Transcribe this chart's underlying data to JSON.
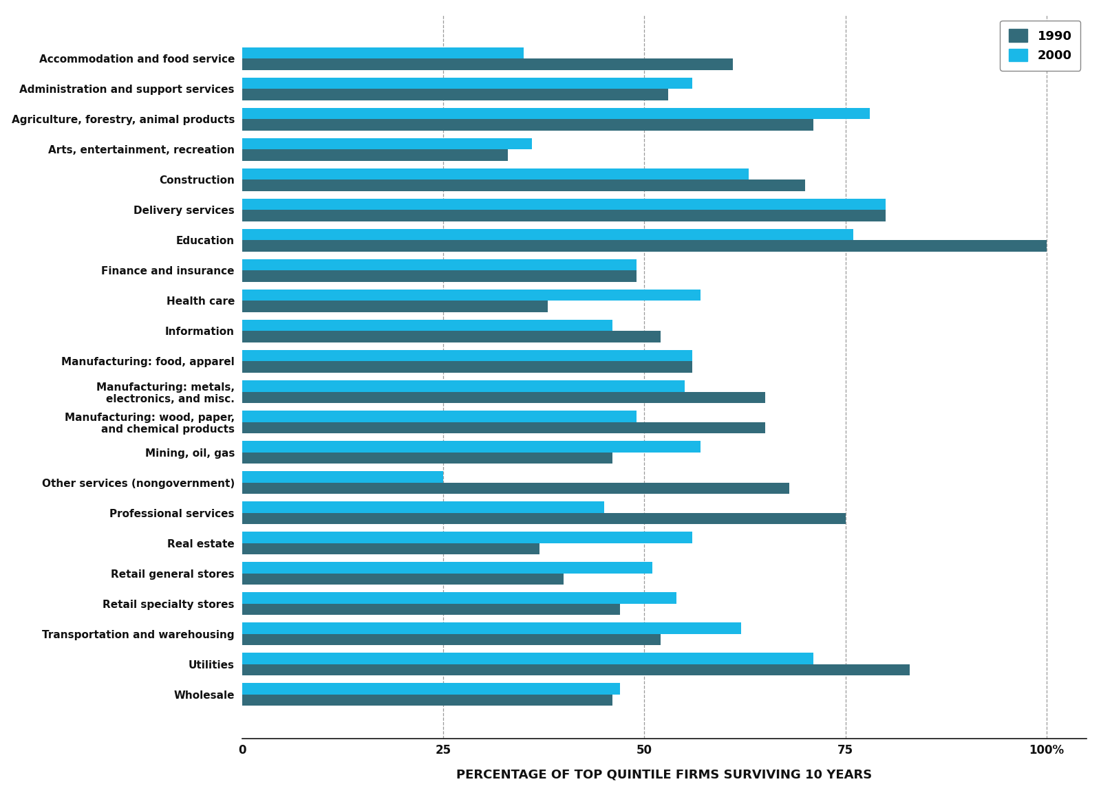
{
  "categories": [
    "Accommodation and food service",
    "Administration and support services",
    "Agriculture, forestry, animal products",
    "Arts, entertainment, recreation",
    "Construction",
    "Delivery services",
    "Education",
    "Finance and insurance",
    "Health care",
    "Information",
    "Manufacturing: food, apparel",
    "Manufacturing: metals,\nelectronics, and misc.",
    "Manufacturing: wood, paper,\nand chemical products",
    "Mining, oil, gas",
    "Other services (nongovernment)",
    "Professional services",
    "Real estate",
    "Retail general stores",
    "Retail specialty stores",
    "Transportation and warehousing",
    "Utilities",
    "Wholesale"
  ],
  "values_1990": [
    61,
    53,
    71,
    33,
    70,
    80,
    100,
    49,
    38,
    52,
    56,
    65,
    65,
    46,
    68,
    75,
    37,
    40,
    47,
    52,
    83,
    46
  ],
  "values_2000": [
    35,
    56,
    78,
    36,
    63,
    80,
    76,
    49,
    57,
    46,
    56,
    55,
    49,
    57,
    25,
    45,
    56,
    51,
    54,
    62,
    71,
    47
  ],
  "color_1990": "#336B7A",
  "color_2000": "#1AB8E8",
  "xlabel": "PERCENTAGE OF TOP QUINTILE FIRMS SURVIVING 10 YEARS",
  "xlim": [
    0,
    105
  ],
  "xtick_labels": [
    "0",
    "25",
    "50",
    "75",
    "100%"
  ],
  "xtick_positions": [
    0,
    25,
    50,
    75,
    100
  ],
  "legend_labels": [
    "1990",
    "2000"
  ],
  "background_color": "#ffffff",
  "bar_height": 0.38,
  "grid_color": "#999999",
  "vline_positions": [
    25,
    50,
    75,
    100
  ]
}
